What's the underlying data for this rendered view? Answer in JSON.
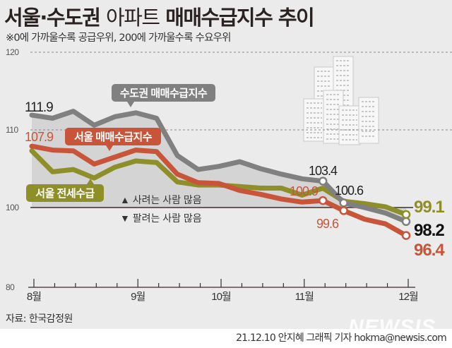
{
  "header": {
    "title_bold": "서울·수도권",
    "title_light": "아파트",
    "title_rest": "매매수급지수 추이",
    "subtitle": "※0에 가까울수록 공급우위, 200에 가까울수록 수요우위"
  },
  "footer": {
    "source": "자료: 한국감정원",
    "credit": "21.12.10 안지혜 그래픽 기자 hokma@newsis.com",
    "logo": "NEWSIS"
  },
  "chart_data": {
    "type": "line",
    "title": "서울·수도권 아파트 매매수급지수 추이",
    "x_tick_labels": [
      "8월",
      "9월",
      "10월",
      "11월",
      "12월"
    ],
    "x_tick_label_indices": [
      0,
      5,
      9,
      13,
      18
    ],
    "y_tick_labels": [
      "120",
      "110",
      "100",
      "80"
    ],
    "ylim": [
      80,
      120
    ],
    "y_axis_break": "between 80 and 100",
    "gridlines": "dotted at 110 and 120, solid at 100",
    "annotations": {
      "above": "▲ 사려는 사람 많음",
      "below": "▼ 팔려는 사람 많음"
    },
    "series": [
      {
        "name": "수도권 매매수급지수",
        "color": "#808080",
        "values": [
          111.9,
          111.5,
          112.4,
          110.6,
          111.7,
          112.2,
          111.5,
          106.7,
          104.9,
          105.3,
          105.9,
          105.0,
          104.3,
          103.7,
          103.4,
          100.6,
          100.0,
          99.3,
          98.2
        ],
        "labels": [
          {
            "index": 0,
            "text": "111.9"
          },
          {
            "index": 14,
            "text": "103.4"
          },
          {
            "index": 15,
            "text": "100.6"
          },
          {
            "index": 18,
            "text": "98.2"
          }
        ]
      },
      {
        "name": "서울 매매수급지수",
        "color": "#c8553a",
        "values": [
          107.9,
          107.4,
          107.3,
          105.6,
          106.5,
          107.4,
          107.2,
          104.3,
          103.2,
          103.1,
          102.2,
          101.7,
          101.1,
          100.7,
          100.9,
          99.6,
          98.5,
          97.9,
          96.4
        ],
        "labels": [
          {
            "index": 0,
            "text": "107.9"
          },
          {
            "index": 14,
            "text": "100.9"
          },
          {
            "index": 15,
            "text": "99.6"
          },
          {
            "index": 18,
            "text": "96.4"
          }
        ]
      },
      {
        "name": "서울 전세수급",
        "color": "#8f8f2a",
        "values": [
          107.3,
          104.6,
          104.9,
          103.8,
          105.2,
          106.0,
          105.8,
          103.3,
          102.9,
          102.9,
          102.7,
          102.5,
          102.5,
          101.6,
          102.5,
          100.8,
          100.5,
          100.1,
          99.1
        ],
        "labels": [
          {
            "index": 18,
            "text": "99.1"
          }
        ]
      }
    ]
  }
}
